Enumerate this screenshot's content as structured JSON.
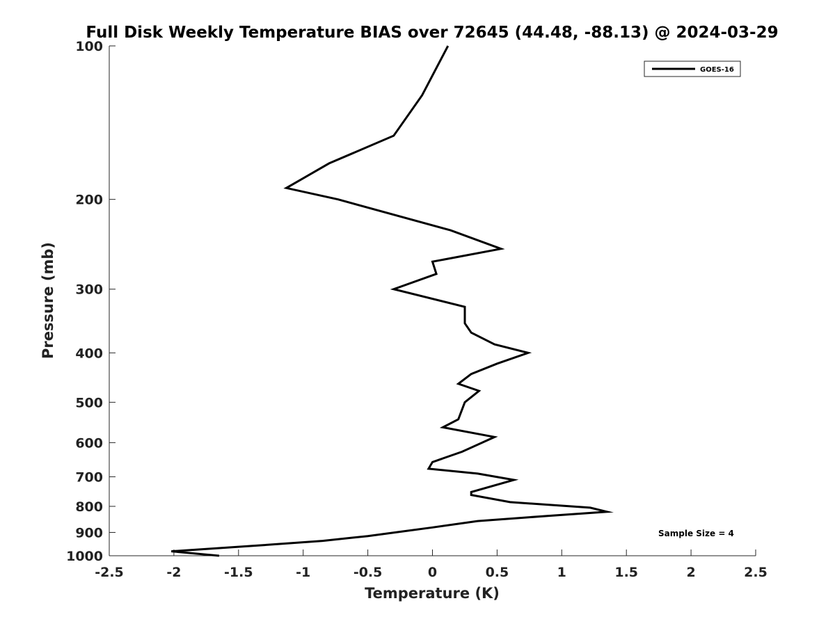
{
  "chart_data": {
    "type": "line",
    "title": "Full Disk Weekly Temperature BIAS over 72645 (44.48, -88.13) @ 2024-03-29",
    "xlabel": "Temperature (K)",
    "ylabel": "Pressure (mb)",
    "xlim": [
      -2.5,
      2.5
    ],
    "ylim": [
      100,
      1000
    ],
    "y_scale": "log",
    "y_reversed": true,
    "x_ticks": [
      "-2.5",
      "-2",
      "-1.5",
      "-1",
      "-0.5",
      "0",
      "0.5",
      "1",
      "1.5",
      "2",
      "2.5"
    ],
    "x_tick_values": [
      -2.5,
      -2,
      -1.5,
      -1,
      -0.5,
      0,
      0.5,
      1,
      1.5,
      2,
      2.5
    ],
    "y_ticks": [
      "100",
      "200",
      "300",
      "400",
      "500",
      "600",
      "700",
      "800",
      "900",
      "1000"
    ],
    "y_tick_values": [
      100,
      200,
      300,
      400,
      500,
      600,
      700,
      800,
      900,
      1000
    ],
    "grid": false,
    "legend_position": "top-right",
    "series": [
      {
        "name": "GOES-16",
        "color": "#000000",
        "points": [
          {
            "x": 0.12,
            "y": 100
          },
          {
            "x": -0.08,
            "y": 125
          },
          {
            "x": -0.3,
            "y": 150
          },
          {
            "x": -0.8,
            "y": 170
          },
          {
            "x": -1.13,
            "y": 190
          },
          {
            "x": -0.73,
            "y": 200
          },
          {
            "x": 0.14,
            "y": 230
          },
          {
            "x": 0.53,
            "y": 250
          },
          {
            "x": 0.0,
            "y": 265
          },
          {
            "x": 0.03,
            "y": 280
          },
          {
            "x": -0.3,
            "y": 300
          },
          {
            "x": 0.25,
            "y": 325
          },
          {
            "x": 0.25,
            "y": 350
          },
          {
            "x": 0.3,
            "y": 365
          },
          {
            "x": 0.48,
            "y": 385
          },
          {
            "x": 0.74,
            "y": 400
          },
          {
            "x": 0.5,
            "y": 420
          },
          {
            "x": 0.3,
            "y": 440
          },
          {
            "x": 0.2,
            "y": 460
          },
          {
            "x": 0.36,
            "y": 475
          },
          {
            "x": 0.25,
            "y": 500
          },
          {
            "x": 0.2,
            "y": 540
          },
          {
            "x": 0.08,
            "y": 560
          },
          {
            "x": 0.48,
            "y": 585
          },
          {
            "x": 0.23,
            "y": 625
          },
          {
            "x": 0.0,
            "y": 655
          },
          {
            "x": -0.03,
            "y": 675
          },
          {
            "x": 0.35,
            "y": 690
          },
          {
            "x": 0.63,
            "y": 710
          },
          {
            "x": 0.3,
            "y": 750
          },
          {
            "x": 0.3,
            "y": 760
          },
          {
            "x": 0.6,
            "y": 785
          },
          {
            "x": 1.22,
            "y": 805
          },
          {
            "x": 1.35,
            "y": 820
          },
          {
            "x": 0.9,
            "y": 835
          },
          {
            "x": 0.35,
            "y": 855
          },
          {
            "x": 0.0,
            "y": 880
          },
          {
            "x": -0.5,
            "y": 915
          },
          {
            "x": -0.85,
            "y": 935
          },
          {
            "x": -1.35,
            "y": 955
          },
          {
            "x": -2.02,
            "y": 980
          },
          {
            "x": -1.65,
            "y": 1000
          }
        ]
      }
    ],
    "annotations": [
      {
        "text": "Sample Size = 4"
      }
    ]
  }
}
